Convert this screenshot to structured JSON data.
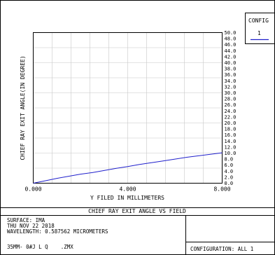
{
  "config_panel": {
    "label": "CONFIG",
    "value": "1"
  },
  "colors": {
    "series": "#2020cc",
    "grid": "#c8c8c8",
    "frame": "#000000"
  },
  "chart_data": {
    "type": "line",
    "title": "CHIEF RAY EXIT ANGLE VS FIELD",
    "xlabel": "Y FILED IN MILLIMETERS",
    "ylabel": "CHIEF RAY EXIT ANGLE(IN DEGREE)",
    "xlim": [
      0,
      8
    ],
    "ylim": [
      0,
      50
    ],
    "grid": true,
    "x_tick_labels": [
      "0.000",
      "4.000",
      "8.000"
    ],
    "y_tick_labels": [
      "0.0",
      "2.0",
      "4.0",
      "6.0",
      "8.0",
      "10.0",
      "12.0",
      "14.0",
      "16.0",
      "18.0",
      "20.0",
      "22.0",
      "24.0",
      "26.0",
      "28.0",
      "30.0",
      "32.0",
      "34.0",
      "36.0",
      "38.0",
      "40.0",
      "42.0",
      "44.0",
      "46.0",
      "48.0",
      "50.0"
    ],
    "series": [
      {
        "x": [
          0,
          0.5,
          1,
          1.5,
          2,
          2.5,
          3,
          3.5,
          4,
          4.5,
          5,
          5.5,
          6,
          6.5,
          7,
          7.5,
          8
        ],
        "y": [
          0,
          0.8,
          1.6,
          2.3,
          3.0,
          3.5,
          4.2,
          4.9,
          5.5,
          6.2,
          6.8,
          7.4,
          8.0,
          8.6,
          9.1,
          9.6,
          10.1
        ]
      }
    ]
  },
  "info": {
    "surface": "SURFACE: IMA",
    "date": "THU NOV 22 2018",
    "wavelength": "WAVELENGTH: 0.587562 MICROMETERS",
    "file": "35MM- 0#J L Q    .ZMX",
    "configuration": "CONFIGURATION: ALL 1"
  }
}
